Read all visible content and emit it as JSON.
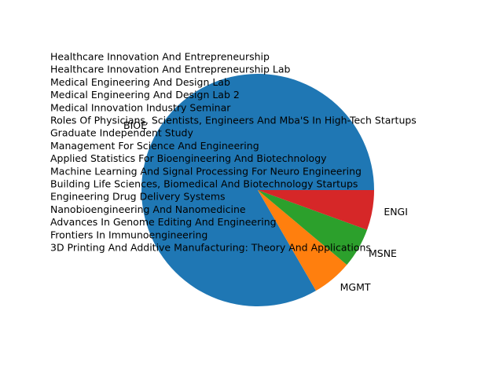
{
  "chart_data": {
    "type": "pie",
    "categories": [
      "BIOE",
      "MGMT",
      "MSNE",
      "ENGI"
    ],
    "values": [
      15,
      1,
      1,
      1
    ],
    "colors": [
      "#1f77b4",
      "#ff7f0e",
      "#2ca02c",
      "#d62728"
    ],
    "start_angle_deg": 0,
    "direction": "counterclockwise",
    "annotation_lines": [
      "Healthcare Innovation And Entrepreneurship",
      "Healthcare Innovation And Entrepreneurship Lab",
      "Medical Engineering And Design Lab",
      "Medical Engineering And Design Lab 2",
      "Medical Innovation Industry Seminar",
      "Roles Of Physicians, Scientists, Engineers And Mba'S In High-Tech Startups",
      "Graduate Independent Study",
      "Management For Science And Engineering",
      "Applied Statistics For Bioengineering And Biotechnology",
      "Machine Learning And Signal Processing For Neuro Engineering",
      "Building Life Sciences, Biomedical And Biotechnology Startups",
      "Engineering Drug Delivery Systems",
      "Nanobioengineering And Nanomedicine",
      "Advances In Genome Editing And Engineering",
      "Frontiers In Immunoengineering",
      "3D Printing And Additive Manufacturing: Theory And Applications"
    ]
  }
}
